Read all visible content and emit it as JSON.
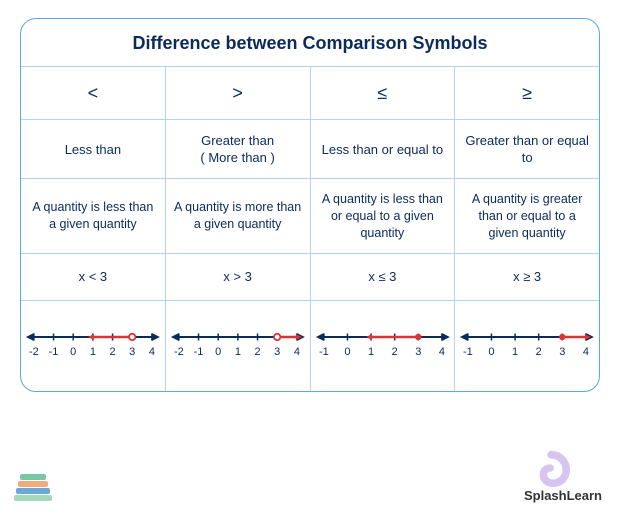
{
  "title": "Difference between Comparison Symbols",
  "colors": {
    "border": "#5aa9e6",
    "grid": "#b3d4f0",
    "text": "#0a2b5c",
    "axis": "#0a2b5c",
    "highlight": "#d33",
    "tick_label": "#0a2b5c"
  },
  "columns": [
    {
      "symbol": "<",
      "name": "Less than",
      "desc": "A quantity is less than a given quantity",
      "example": "x < 3",
      "numberline": {
        "min": -2,
        "max": 4,
        "point": 3,
        "direction": "left",
        "closed": false,
        "start_at": 1
      }
    },
    {
      "symbol": ">",
      "name": "Greater than\n( More than )",
      "desc": "A quantity is more than a given quantity",
      "example": "x > 3",
      "numberline": {
        "min": -2,
        "max": 4,
        "point": 3,
        "direction": "right",
        "closed": false
      }
    },
    {
      "symbol": "≤",
      "name": "Less than or equal to",
      "desc": "A quantity is less than or equal to a given quantity",
      "example": "x  ≤ 3",
      "numberline": {
        "min": -1,
        "max": 4,
        "point": 3,
        "direction": "left",
        "closed": true,
        "start_at": 1
      }
    },
    {
      "symbol": "≥",
      "name": "Greater than or equal to",
      "desc": "A quantity is greater than or equal to a given quantity",
      "example": "x  ≥ 3",
      "numberline": {
        "min": -1,
        "max": 4,
        "point": 3,
        "direction": "right",
        "closed": true
      }
    }
  ],
  "brand": {
    "part1": "Splash",
    "part2": "Learn"
  },
  "numberline_style": {
    "axis_width": 2,
    "tick_height": 7,
    "label_fontsize": 11,
    "highlight_width": 2.5,
    "point_radius": 3.2
  },
  "books_svg": {
    "colors": [
      "#7ac7a8",
      "#f5a97f",
      "#6aa8d8",
      "#a5d8b8"
    ]
  }
}
